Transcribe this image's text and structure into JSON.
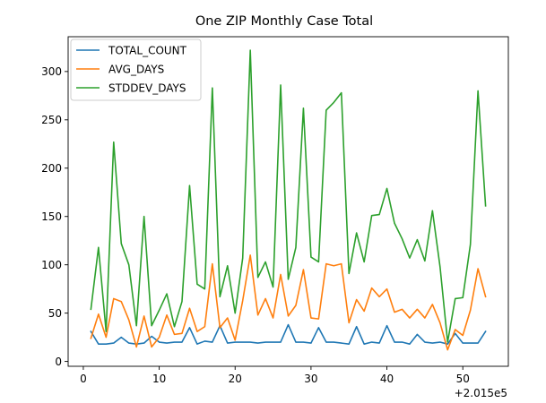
{
  "chart_data": {
    "type": "line",
    "title": "One ZIP Monthly Case Total",
    "xlabel": "",
    "ylabel": "",
    "x_offset_label": "+2.015e5",
    "xlim": [
      -2.0,
      56.0
    ],
    "ylim": [
      -5,
      336
    ],
    "x_ticks": [
      0,
      10,
      20,
      30,
      40,
      50
    ],
    "x_tick_labels": [
      "0",
      "10",
      "20",
      "30",
      "40",
      "50"
    ],
    "y_ticks": [
      0,
      50,
      100,
      150,
      200,
      250,
      300
    ],
    "y_tick_labels": [
      "0",
      "50",
      "100",
      "150",
      "200",
      "250",
      "300"
    ],
    "grid": false,
    "legend_position": "upper-left",
    "x": [
      1,
      2,
      3,
      4,
      5,
      6,
      7,
      8,
      9,
      10,
      11,
      12,
      13,
      14,
      15,
      16,
      17,
      18,
      19,
      20,
      21,
      22,
      23,
      24,
      25,
      26,
      27,
      28,
      29,
      30,
      31,
      32,
      33,
      34,
      35,
      36,
      37,
      38,
      39,
      40,
      41,
      42,
      43,
      44,
      45,
      46,
      47,
      48,
      49,
      50,
      51,
      52,
      53
    ],
    "series": [
      {
        "name": "TOTAL_COUNT",
        "color": "#1f77b4",
        "values": [
          31,
          18,
          18,
          19,
          25,
          19,
          18,
          19,
          26,
          20,
          19,
          20,
          20,
          35,
          18,
          21,
          20,
          37,
          19,
          20,
          20,
          20,
          19,
          20,
          20,
          20,
          38,
          20,
          20,
          19,
          35,
          20,
          20,
          19,
          18,
          36,
          18,
          20,
          19,
          37,
          20,
          20,
          18,
          28,
          20,
          19,
          20,
          18,
          29,
          19,
          19,
          19,
          31
        ]
      },
      {
        "name": "AVG_DAYS",
        "color": "#ff7f0e",
        "values": [
          24,
          49,
          25,
          65,
          62,
          43,
          15,
          47,
          15,
          25,
          48,
          28,
          29,
          55,
          31,
          36,
          101,
          35,
          45,
          22,
          63,
          110,
          48,
          65,
          45,
          90,
          47,
          58,
          95,
          45,
          44,
          101,
          99,
          101,
          40,
          64,
          52,
          76,
          67,
          75,
          51,
          54,
          45,
          54,
          45,
          59,
          40,
          12,
          33,
          27,
          53,
          96,
          67
        ]
      },
      {
        "name": "STDDEV_DAYS",
        "color": "#2ca02c",
        "values": [
          54,
          118,
          31,
          227,
          122,
          100,
          37,
          150,
          37,
          53,
          70,
          36,
          62,
          182,
          80,
          75,
          283,
          67,
          99,
          50,
          107,
          322,
          87,
          103,
          77,
          286,
          85,
          118,
          262,
          108,
          103,
          260,
          268,
          278,
          91,
          133,
          103,
          151,
          152,
          179,
          143,
          127,
          107,
          126,
          104,
          156,
          98,
          20,
          65,
          66,
          121,
          280,
          161
        ]
      }
    ]
  }
}
